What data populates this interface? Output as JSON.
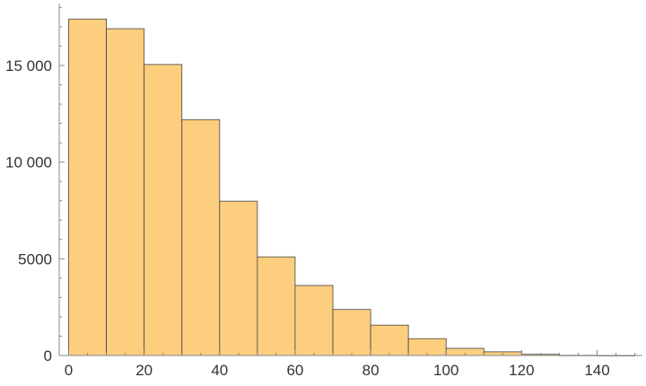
{
  "chart_data": {
    "type": "bar",
    "subtype": "histogram",
    "title": "",
    "xlabel": "",
    "ylabel": "",
    "bin_width": 10,
    "bins": [
      {
        "x0": 0,
        "x1": 10,
        "count": 17400
      },
      {
        "x0": 10,
        "x1": 20,
        "count": 16900
      },
      {
        "x0": 20,
        "x1": 30,
        "count": 15050
      },
      {
        "x0": 30,
        "x1": 40,
        "count": 12200
      },
      {
        "x0": 40,
        "x1": 50,
        "count": 7980
      },
      {
        "x0": 50,
        "x1": 60,
        "count": 5100
      },
      {
        "x0": 60,
        "x1": 70,
        "count": 3620
      },
      {
        "x0": 70,
        "x1": 80,
        "count": 2380
      },
      {
        "x0": 80,
        "x1": 90,
        "count": 1570
      },
      {
        "x0": 90,
        "x1": 100,
        "count": 870
      },
      {
        "x0": 100,
        "x1": 110,
        "count": 370
      },
      {
        "x0": 110,
        "x1": 120,
        "count": 190
      },
      {
        "x0": 120,
        "x1": 130,
        "count": 60
      },
      {
        "x0": 130,
        "x1": 140,
        "count": 12
      },
      {
        "x0": 140,
        "x1": 150,
        "count": 3
      }
    ],
    "xlim": [
      -2.5,
      152
    ],
    "ylim": [
      0,
      18200
    ],
    "x_ticks": [
      {
        "value": 0,
        "label": "0"
      },
      {
        "value": 20,
        "label": "20"
      },
      {
        "value": 40,
        "label": "40"
      },
      {
        "value": 60,
        "label": "60"
      },
      {
        "value": 80,
        "label": "80"
      },
      {
        "value": 100,
        "label": "100"
      },
      {
        "value": 120,
        "label": "120"
      },
      {
        "value": 140,
        "label": "140"
      }
    ],
    "y_ticks": [
      {
        "value": 0,
        "label": "0"
      },
      {
        "value": 5000,
        "label": "5000"
      },
      {
        "value": 10000,
        "label": "10 000"
      },
      {
        "value": 15000,
        "label": "15 000"
      }
    ],
    "x_minor_step": 5,
    "y_minor_step": 1000,
    "grid": false,
    "colors": {
      "bar_fill": "#fcce7e",
      "bar_stroke": "#444444",
      "axis": "#888888"
    }
  }
}
